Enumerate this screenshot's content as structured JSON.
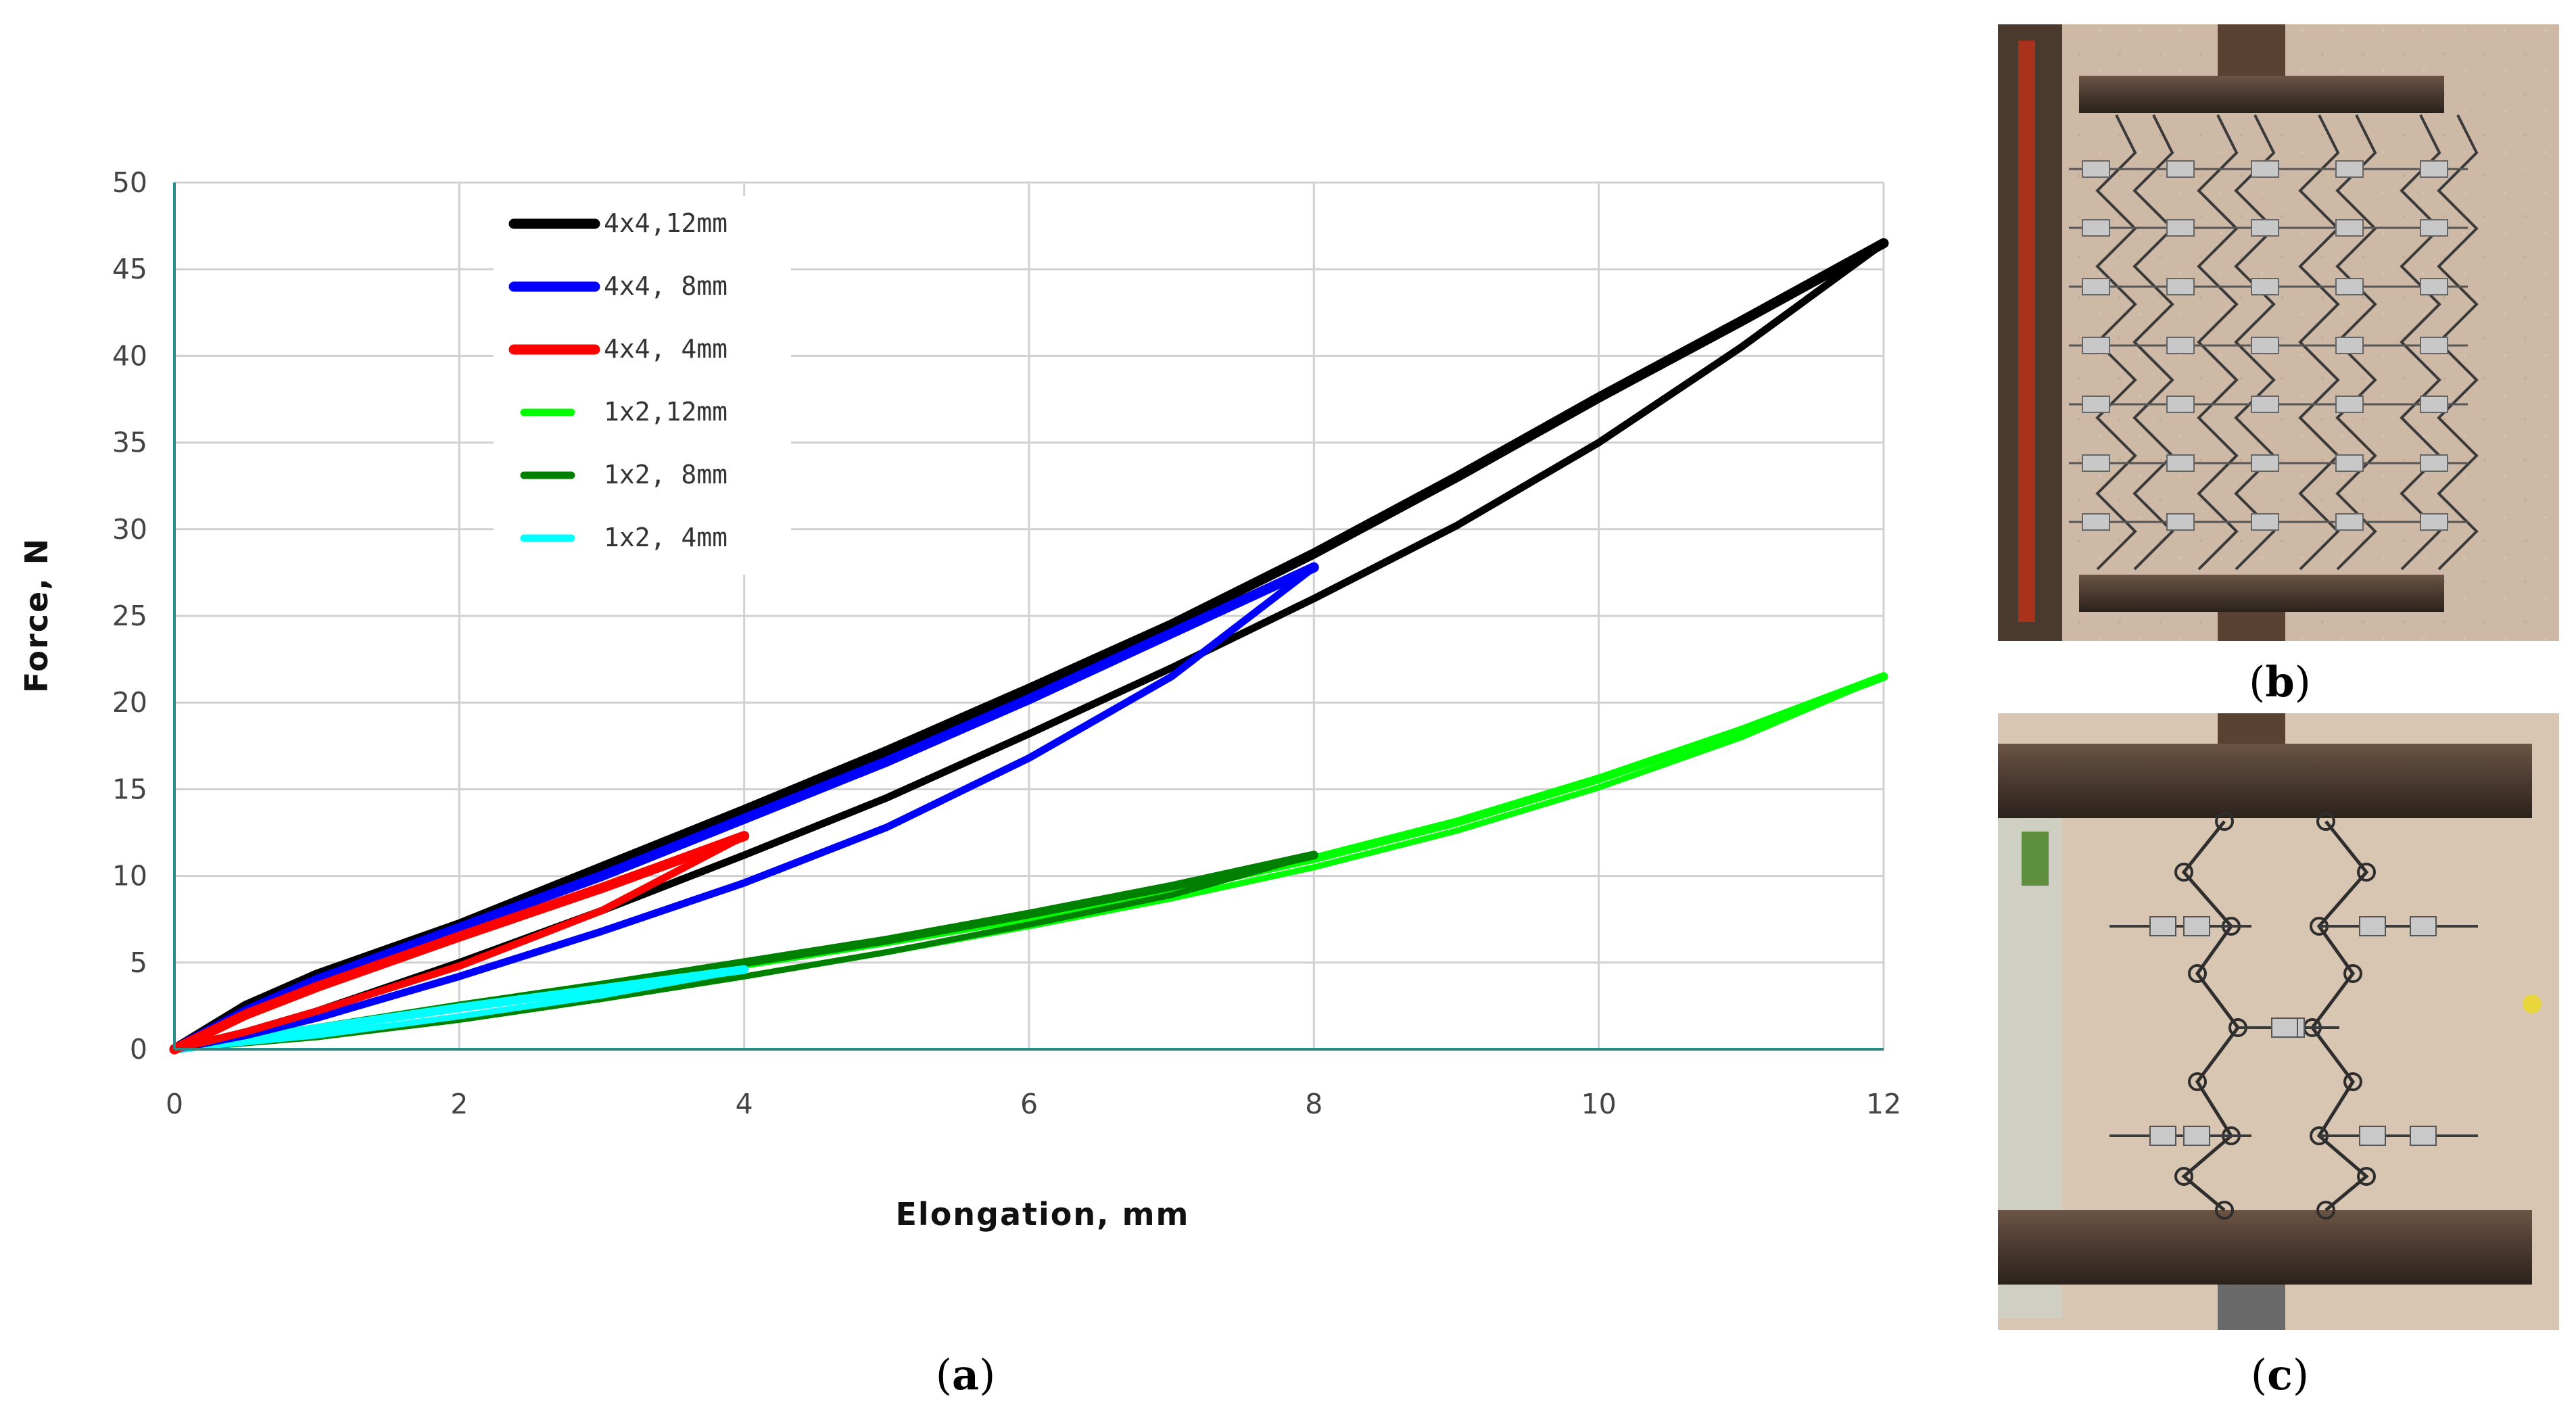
{
  "chart_data": {
    "type": "line",
    "title": "",
    "xlabel": "Elongation, mm",
    "ylabel": "Force, N",
    "xlim": [
      0,
      12
    ],
    "ylim": [
      0,
      50
    ],
    "xticks": [
      0,
      2,
      4,
      6,
      8,
      10,
      12
    ],
    "yticks": [
      0,
      5,
      10,
      15,
      20,
      25,
      30,
      35,
      40,
      45,
      50
    ],
    "grid": true,
    "legend": "top-left",
    "series": [
      {
        "name": "4x4,12mm",
        "color": "#000000",
        "loading": {
          "x": [
            0,
            0.5,
            1,
            2,
            3,
            4,
            5,
            6,
            7,
            8,
            9,
            10,
            11,
            12
          ],
          "y": [
            0,
            2.5,
            4.3,
            7.2,
            10.5,
            13.8,
            17.2,
            20.8,
            24.5,
            28.6,
            33.0,
            37.6,
            42.0,
            46.5
          ]
        },
        "unloading": {
          "x": [
            12,
            11,
            10,
            9,
            8,
            7,
            6,
            5,
            4,
            3,
            2,
            1,
            0.5,
            0
          ],
          "y": [
            46.5,
            40.5,
            35.0,
            30.2,
            26.0,
            22.0,
            18.2,
            14.5,
            11.2,
            8.0,
            5.0,
            2.2,
            1.0,
            0
          ]
        }
      },
      {
        "name": "4x4, 8mm",
        "color": "#0000ff",
        "loading": {
          "x": [
            0,
            0.5,
            1,
            2,
            3,
            4,
            5,
            6,
            7,
            8
          ],
          "y": [
            0,
            2.2,
            4.0,
            7.0,
            10.0,
            13.3,
            16.6,
            20.2,
            24.0,
            27.8
          ]
        },
        "unloading": {
          "x": [
            8,
            7,
            6,
            5,
            4,
            3,
            2,
            1,
            0.5,
            0
          ],
          "y": [
            27.8,
            21.5,
            16.8,
            12.8,
            9.6,
            6.8,
            4.2,
            1.8,
            0.8,
            0
          ]
        }
      },
      {
        "name": "4x4, 4mm",
        "color": "#ff0000",
        "loading": {
          "x": [
            0,
            0.5,
            1,
            2,
            3,
            4
          ],
          "y": [
            0,
            2.0,
            3.6,
            6.5,
            9.3,
            12.3
          ]
        },
        "unloading": {
          "x": [
            4,
            3,
            2,
            1,
            0.5,
            0
          ],
          "y": [
            12.3,
            8.0,
            4.8,
            2.2,
            1.0,
            0
          ]
        }
      },
      {
        "name": "1x2,12mm",
        "color": "#00ff00",
        "loading": {
          "x": [
            0,
            1,
            2,
            3,
            4,
            5,
            6,
            7,
            8,
            9,
            10,
            11,
            12
          ],
          "y": [
            0,
            1.2,
            2.5,
            3.7,
            4.9,
            6.2,
            7.6,
            9.2,
            11.0,
            13.1,
            15.6,
            18.4,
            21.5
          ]
        },
        "unloading": {
          "x": [
            12,
            11,
            10,
            9,
            8,
            7,
            6,
            5,
            4,
            3,
            2,
            1,
            0
          ],
          "y": [
            21.5,
            18.0,
            15.1,
            12.6,
            10.5,
            8.7,
            7.1,
            5.6,
            4.2,
            2.9,
            1.7,
            0.7,
            0
          ]
        }
      },
      {
        "name": "1x2, 8mm",
        "color": "#008000",
        "loading": {
          "x": [
            0,
            1,
            2,
            3,
            4,
            5,
            6,
            7,
            8
          ],
          "y": [
            0,
            1.2,
            2.5,
            3.7,
            5.0,
            6.3,
            7.8,
            9.4,
            11.2
          ]
        },
        "unloading": {
          "x": [
            8,
            7,
            6,
            5,
            4,
            3,
            2,
            1,
            0
          ],
          "y": [
            11.2,
            8.9,
            7.2,
            5.6,
            4.2,
            2.9,
            1.7,
            0.7,
            0
          ]
        }
      },
      {
        "name": "1x2, 4mm",
        "color": "#00ffff",
        "loading": {
          "x": [
            0,
            1,
            2,
            3,
            4
          ],
          "y": [
            0,
            1.2,
            2.4,
            3.5,
            4.6
          ]
        },
        "unloading": {
          "x": [
            4,
            3,
            2,
            1,
            0
          ],
          "y": [
            4.6,
            3.1,
            1.9,
            0.8,
            0
          ]
        }
      }
    ]
  },
  "panels": {
    "a_label": "(a)",
    "b_label": "(b)",
    "c_label": "(c)",
    "a_letter": "a",
    "b_letter": "b",
    "c_letter": "c"
  }
}
